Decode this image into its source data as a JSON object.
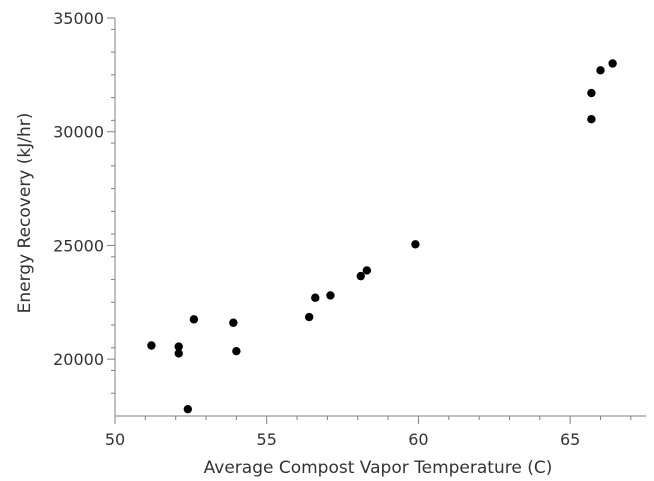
{
  "chart_data": {
    "type": "scatter",
    "title": "",
    "xlabel": "Average Compost Vapor Temperature (C)",
    "ylabel": "Energy Recovery (kJ/hr)",
    "xlim": [
      50,
      67.5
    ],
    "ylim": [
      17500,
      35000
    ],
    "x_ticks": [
      50,
      55,
      60,
      65
    ],
    "x_tick_labels": [
      "50",
      "55",
      "60",
      "65"
    ],
    "y_ticks": [
      20000,
      25000,
      30000,
      35000
    ],
    "y_tick_labels": [
      "20000",
      "25000",
      "30000",
      "35000"
    ],
    "grid": false,
    "legend": "none",
    "marker_color": "#000000",
    "axis_color": "#808080",
    "points": [
      {
        "x": 51.2,
        "y": 20600
      },
      {
        "x": 52.1,
        "y": 20550
      },
      {
        "x": 52.1,
        "y": 20250
      },
      {
        "x": 52.4,
        "y": 17800
      },
      {
        "x": 52.6,
        "y": 21750
      },
      {
        "x": 53.9,
        "y": 21600
      },
      {
        "x": 54.0,
        "y": 20350
      },
      {
        "x": 56.4,
        "y": 21850
      },
      {
        "x": 56.6,
        "y": 22700
      },
      {
        "x": 57.1,
        "y": 22800
      },
      {
        "x": 58.1,
        "y": 23650
      },
      {
        "x": 58.3,
        "y": 23900
      },
      {
        "x": 59.9,
        "y": 25050
      },
      {
        "x": 65.7,
        "y": 31700
      },
      {
        "x": 65.7,
        "y": 30550
      },
      {
        "x": 66.0,
        "y": 32700
      },
      {
        "x": 66.4,
        "y": 33000
      }
    ]
  }
}
